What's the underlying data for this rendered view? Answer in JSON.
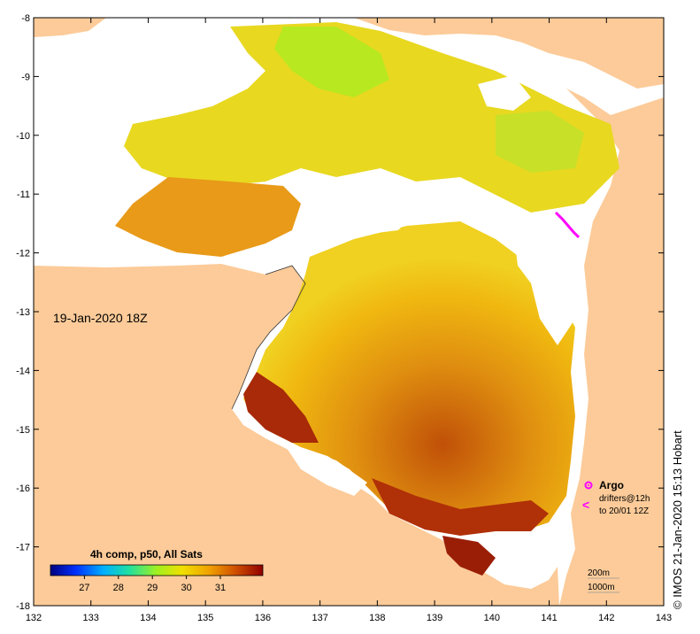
{
  "map": {
    "timestamp_label": "19-Jan-2020 18Z",
    "credit": "© IMOS 21-Jan-2020 15:13 Hobart",
    "x_ticks": [
      "132",
      "133",
      "134",
      "135",
      "136",
      "137",
      "138",
      "139",
      "140",
      "141",
      "142",
      "143"
    ],
    "y_ticks": [
      "-8",
      "-9",
      "-10",
      "-11",
      "-12",
      "-13",
      "-14",
      "-15",
      "-16",
      "-17",
      "-18"
    ],
    "colorbar": {
      "title": "4h comp, p50, All Sats",
      "ticks": [
        "27",
        "28",
        "29",
        "30",
        "31"
      ]
    },
    "legend": {
      "argo_label": "Argo",
      "drifters_line1": "drifters@12h",
      "drifters_line2": "to 20/01 12Z",
      "argo_color": "#ff00ff",
      "drifter_color": "#ff00ff"
    },
    "contours": {
      "line1": "200m",
      "line2": "1000m"
    },
    "colors": {
      "land": "#fccb99",
      "nodata": "#ffffff",
      "warm": "#a01a08",
      "mid": "#e08010",
      "cool": "#c8e820"
    }
  }
}
